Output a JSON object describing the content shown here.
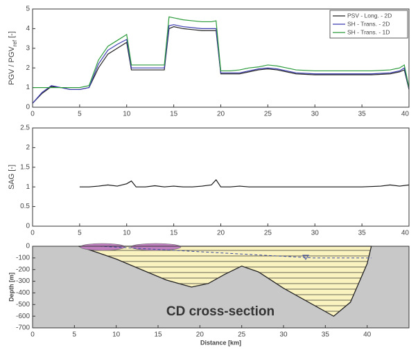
{
  "chart_data": [
    {
      "type": "line",
      "ylabel": {
        "main": "PGV / PGV",
        "sub": "ref",
        "unit": "[-]"
      },
      "xlim": [
        0,
        40
      ],
      "xticks": [
        0,
        5,
        10,
        15,
        20,
        25,
        30,
        35,
        40
      ],
      "ylim": [
        0,
        5
      ],
      "yticks": [
        0,
        1,
        2,
        3,
        4,
        5
      ],
      "legend": "upper right",
      "x": [
        0,
        1,
        2,
        3,
        4,
        5,
        6,
        7,
        8,
        9,
        10,
        10.5,
        11,
        12,
        13,
        14,
        14.5,
        15,
        16,
        17,
        18,
        19,
        19.5,
        20,
        21,
        22,
        23,
        24,
        25,
        26,
        27,
        28,
        30,
        32,
        34,
        36,
        38,
        39,
        39.5,
        40
      ],
      "series": [
        {
          "name": "PSV - Long. - 2D",
          "color": "#222222",
          "values": [
            0.2,
            0.7,
            1.05,
            1.0,
            0.9,
            0.9,
            1.0,
            2.0,
            2.7,
            3.0,
            3.3,
            1.9,
            1.9,
            1.9,
            1.9,
            1.9,
            4.0,
            4.1,
            4.0,
            3.95,
            3.9,
            3.9,
            3.9,
            1.7,
            1.7,
            1.7,
            1.8,
            1.9,
            1.95,
            1.9,
            1.8,
            1.7,
            1.65,
            1.65,
            1.65,
            1.65,
            1.7,
            1.8,
            1.9,
            0.9
          ]
        },
        {
          "name": "SH - Trans. - 2D",
          "color": "#3a3ab0",
          "values": [
            0.2,
            0.75,
            1.1,
            1.0,
            0.9,
            0.9,
            1.0,
            2.2,
            2.9,
            3.2,
            3.45,
            2.0,
            2.0,
            2.0,
            2.0,
            2.0,
            4.15,
            4.2,
            4.1,
            4.05,
            4.0,
            4.0,
            4.0,
            1.75,
            1.75,
            1.75,
            1.85,
            1.95,
            2.0,
            1.95,
            1.85,
            1.75,
            1.7,
            1.7,
            1.7,
            1.7,
            1.75,
            1.85,
            2.0,
            0.95
          ]
        },
        {
          "name": "SH - Trans. - 1D",
          "color": "#2a9a3a",
          "values": [
            1.0,
            1.0,
            1.0,
            1.0,
            1.0,
            1.0,
            1.1,
            2.4,
            3.1,
            3.4,
            3.7,
            2.15,
            2.15,
            2.15,
            2.15,
            2.15,
            4.6,
            4.55,
            4.45,
            4.4,
            4.35,
            4.35,
            4.4,
            1.85,
            1.85,
            1.9,
            2.0,
            2.05,
            2.15,
            2.1,
            2.0,
            1.9,
            1.85,
            1.85,
            1.85,
            1.85,
            1.9,
            2.0,
            2.15,
            1.0
          ]
        }
      ]
    },
    {
      "type": "line",
      "ylabel": "SAG [-]",
      "xlim": [
        0,
        40
      ],
      "xticks": [
        0,
        5,
        10,
        15,
        20,
        25,
        30,
        35,
        40
      ],
      "ylim": [
        0,
        2.5
      ],
      "yticks": [
        0,
        0.5,
        1,
        1.5,
        2,
        2.5
      ],
      "x": [
        5,
        6,
        7,
        8,
        9,
        10,
        10.5,
        11,
        12,
        13,
        14,
        15,
        16,
        17,
        18,
        19,
        19.5,
        20,
        21,
        22,
        23,
        25,
        27,
        30,
        33,
        35,
        37,
        38,
        39,
        40
      ],
      "series": [
        {
          "color": "#111111",
          "values": [
            1.0,
            1.0,
            1.02,
            1.05,
            1.02,
            1.08,
            1.15,
            1.0,
            1.0,
            1.03,
            1.0,
            1.02,
            1.0,
            1.0,
            1.02,
            1.05,
            1.18,
            1.0,
            1.0,
            1.02,
            1.0,
            1.0,
            1.0,
            1.0,
            1.0,
            1.0,
            1.02,
            1.05,
            1.02,
            1.05
          ]
        }
      ]
    },
    {
      "type": "area",
      "ylabel": "Depth [m]",
      "xlabel": "Distance [km]",
      "annotation": "CD cross-section",
      "xlim": [
        0,
        45
      ],
      "xticks": [
        0,
        5,
        10,
        15,
        20,
        25,
        30,
        35,
        40
      ],
      "ylim": [
        -700,
        0
      ],
      "yticks": [
        0,
        -100,
        -200,
        -300,
        -400,
        -500,
        -600,
        -700
      ],
      "series": [
        {
          "color": "#fbf3bf",
          "x": [
            5.5,
            8,
            10,
            13,
            16,
            19,
            21,
            23,
            25,
            27,
            30,
            33,
            36,
            38,
            40,
            40.5
          ],
          "values": [
            0,
            -60,
            -110,
            -200,
            -290,
            -350,
            -320,
            -240,
            -170,
            -220,
            -360,
            -480,
            -600,
            -480,
            -150,
            0
          ]
        },
        {
          "color": "#3a4aa0",
          "dashed": true,
          "x": [
            8,
            33.5,
            40.5
          ],
          "values": [
            0,
            -100,
            -100
          ]
        }
      ]
    }
  ]
}
